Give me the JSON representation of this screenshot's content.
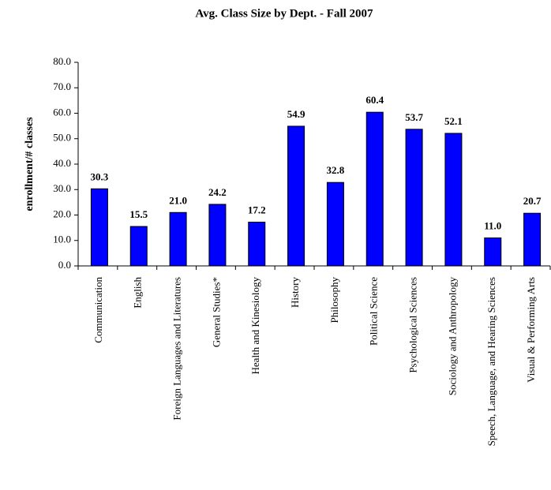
{
  "chart_data": {
    "type": "bar",
    "title": "Avg. Class Size by Dept. - Fall 2007",
    "y_label": "enrollment/# classes",
    "categories": [
      "Communication",
      "English",
      "Foreign Languages and Literatures",
      "General Studies*",
      "Health and Kinesiology",
      "History",
      "Philosophy",
      "Political Science",
      "Psychological Sciences",
      "Sociology and Anthropology",
      "Speech, Language, and Hearing Sciences",
      "Visual & Performing Arts"
    ],
    "values": [
      30.3,
      15.5,
      21.0,
      24.2,
      17.2,
      54.9,
      32.8,
      60.4,
      53.7,
      52.1,
      11.0,
      20.7
    ],
    "value_labels": [
      "30.3",
      "15.5",
      "21.0",
      "24.2",
      "17.2",
      "54.9",
      "32.8",
      "60.4",
      "53.7",
      "52.1",
      "11.0",
      "20.7"
    ],
    "color": "#0000ff",
    "ylim": [
      0,
      80
    ],
    "yticks": [
      {
        "value": 0,
        "label": "0.0"
      },
      {
        "value": 10,
        "label": "10.0"
      },
      {
        "value": 20,
        "label": "20.0"
      },
      {
        "value": 30,
        "label": "30.0"
      },
      {
        "value": 40,
        "label": "40.0"
      },
      {
        "value": 50,
        "label": "50.0"
      },
      {
        "value": 60,
        "label": "60.0"
      },
      {
        "value": 70,
        "label": "70.0"
      },
      {
        "value": 80,
        "label": "80.0"
      }
    ],
    "grid": false
  }
}
